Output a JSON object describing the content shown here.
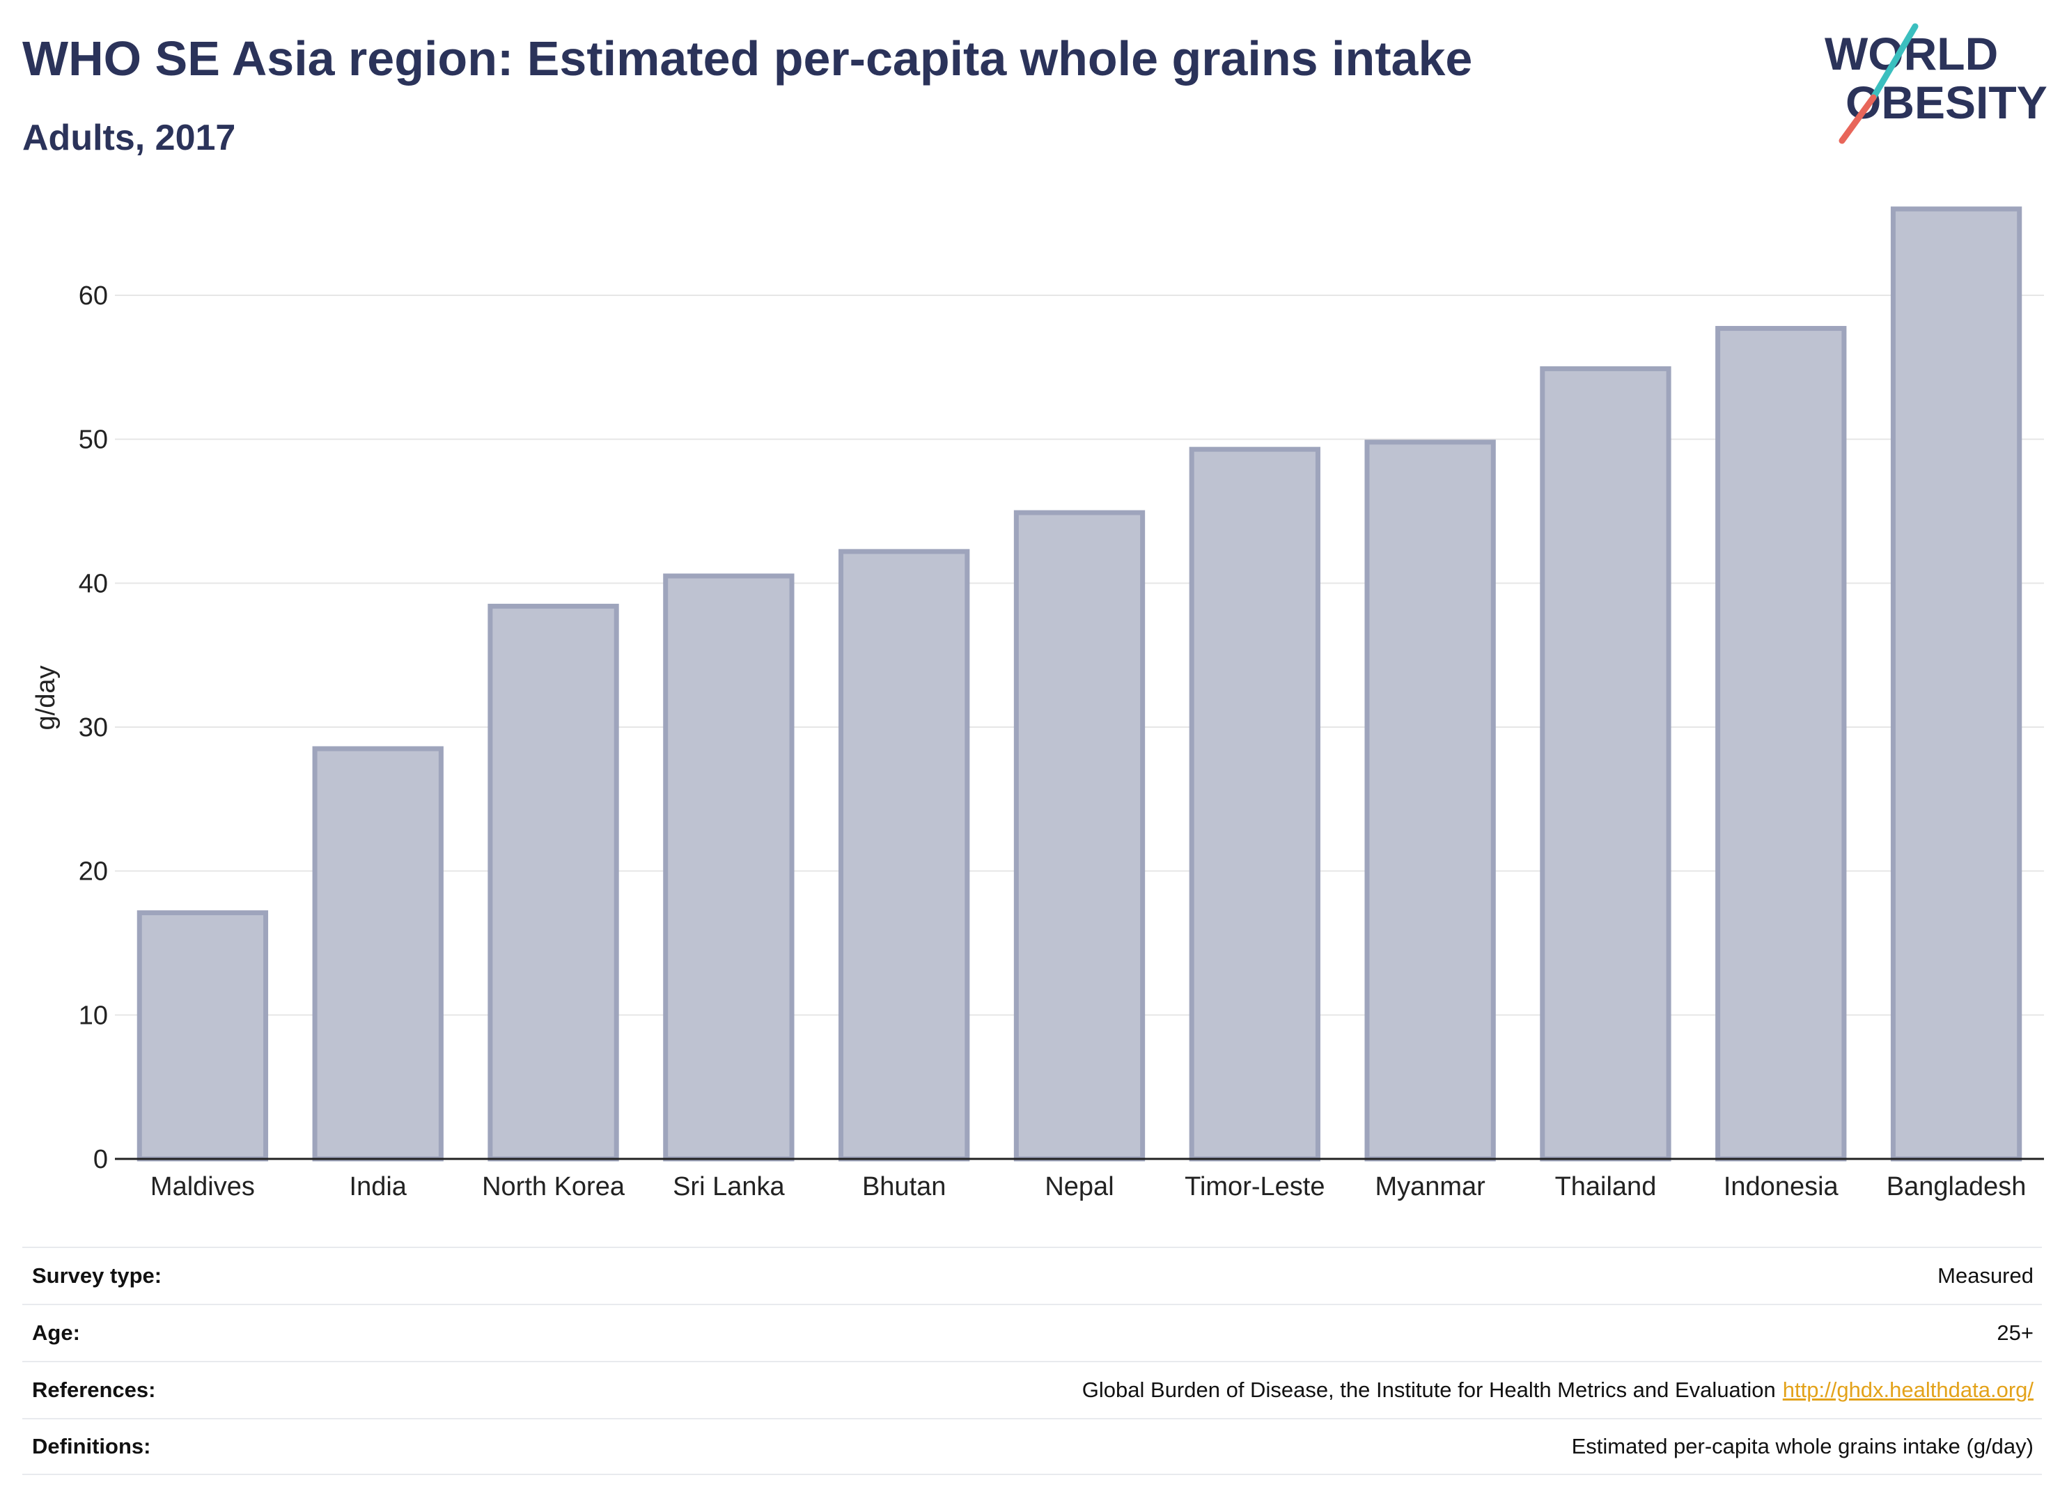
{
  "header": {
    "title": "WHO SE Asia region: Estimated per-capita whole grains intake",
    "subtitle": "Adults, 2017"
  },
  "logo": {
    "line1": "WORLD",
    "line2": "OBESITY",
    "colors": {
      "text": "#2b335a",
      "slash_top": "#3bbfbf",
      "slash_bottom": "#e8665a"
    }
  },
  "colors": {
    "bar_fill": "#bec2d1",
    "bar_stroke": "#9ea4bc",
    "axis": "#222222",
    "grid": "#e6e6e6",
    "title": "#2b335a",
    "link": "#e3a21a"
  },
  "chart_data": {
    "type": "bar",
    "title": "WHO SE Asia region: Estimated per-capita whole grains intake",
    "subtitle": "Adults, 2017",
    "xlabel": "",
    "ylabel": "g/day",
    "ylim": [
      0,
      66
    ],
    "yticks": [
      0,
      10,
      20,
      30,
      40,
      50,
      60
    ],
    "grid": true,
    "categories": [
      "Maldives",
      "India",
      "North Korea",
      "Sri Lanka",
      "Bhutan",
      "Nepal",
      "Timor-Leste",
      "Myanmar",
      "Thailand",
      "Indonesia",
      "Bangladesh"
    ],
    "values": [
      17.1,
      28.5,
      38.4,
      40.5,
      42.2,
      44.9,
      49.3,
      49.8,
      54.9,
      57.7,
      66.0
    ]
  },
  "info": [
    {
      "label": "Survey type:",
      "value": "Measured"
    },
    {
      "label": "Age:",
      "value": "25+"
    },
    {
      "label": "References:",
      "value": "Global Burden of Disease, the Institute for Health Metrics and Evaluation",
      "link": "http://ghdx.healthdata.org/"
    },
    {
      "label": "Definitions:",
      "value": "Estimated per-capita whole grains intake (g/day)"
    }
  ]
}
